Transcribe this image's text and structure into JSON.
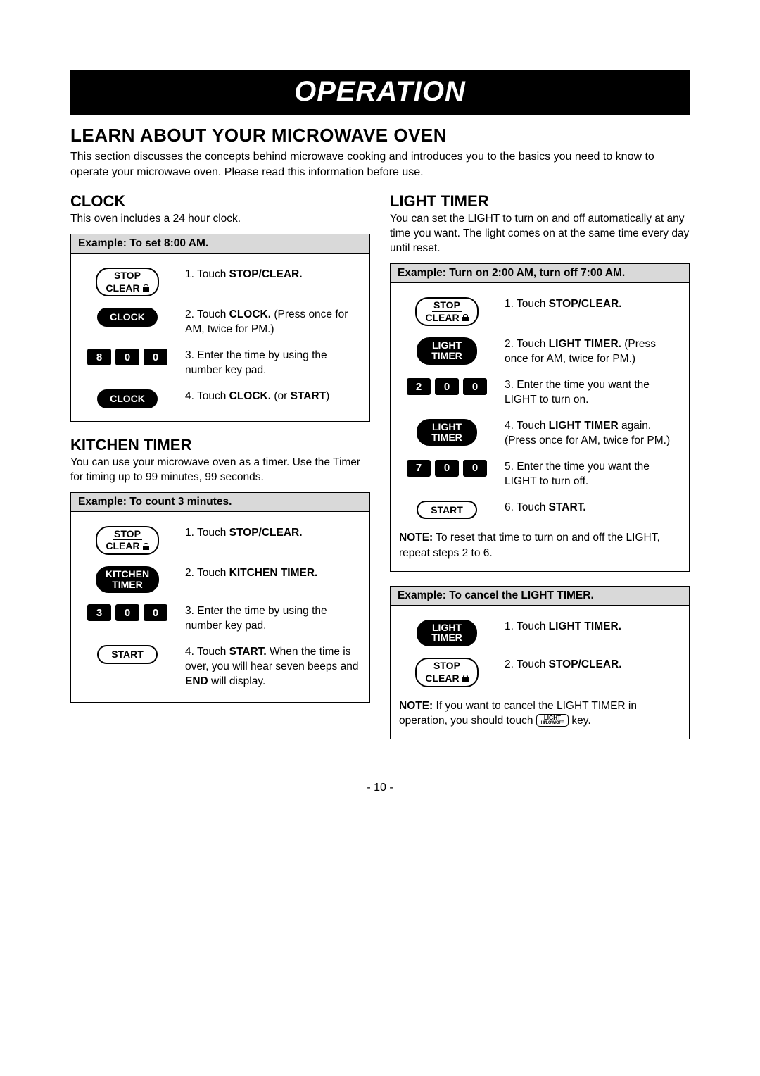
{
  "banner": "OPERATION",
  "h1": "LEARN ABOUT YOUR MICROWAVE OVEN",
  "intro": "This section discusses the concepts behind microwave cooking and introduces you to the basics you need to know to operate your microwave oven. Please read this information before use.",
  "page_num": "- 10 -",
  "clock": {
    "title": "CLOCK",
    "desc": "This oven includes a 24 hour clock.",
    "example_title": "Example: To set 8:00 AM.",
    "steps": {
      "s1_prefix": "1. Touch ",
      "s1_bold": "STOP/CLEAR.",
      "s2_prefix": "2. Touch ",
      "s2_bold": "CLOCK.",
      "s2_suffix": " (Press once for AM, twice for PM.)",
      "s3": "3. Enter the time by using the number key pad.",
      "s4_prefix": "4. Touch ",
      "s4_bold": "CLOCK.",
      "s4_suffix_a": " (or ",
      "s4_suffix_bold": "START",
      "s4_suffix_b": ")"
    },
    "keys": {
      "k1": "8",
      "k2": "0",
      "k3": "0"
    },
    "btn_stop_top": "STOP",
    "btn_stop_bot": "CLEAR",
    "btn_clock": "CLOCK"
  },
  "kitchen": {
    "title": "KITCHEN TIMER",
    "desc": "You can use your microwave oven as a timer. Use the Timer for timing up to 99 minutes, 99 seconds.",
    "example_title": "Example: To count 3 minutes.",
    "steps": {
      "s1_prefix": "1. Touch ",
      "s1_bold": "STOP/CLEAR.",
      "s2_prefix": "2. Touch ",
      "s2_bold": "KITCHEN TIMER.",
      "s3": "3. Enter the time by using the number key pad.",
      "s4_prefix": "4. Touch ",
      "s4_bold": "START.",
      "s4_suffix_a": " When the time is over, you will hear seven beeps and ",
      "s4_suffix_bold": "END",
      "s4_suffix_b": " will display."
    },
    "keys": {
      "k1": "3",
      "k2": "0",
      "k3": "0"
    },
    "btn_kitchen_top": "KITCHEN",
    "btn_kitchen_bot": "TIMER",
    "btn_start": "START"
  },
  "light": {
    "title": "LIGHT TIMER",
    "desc": "You can set the LIGHT to turn on and off automatically at any time you want. The light comes on at the same time every day until reset.",
    "example_title": "Example: Turn on 2:00 AM, turn off 7:00 AM.",
    "steps": {
      "s1_prefix": "1. Touch ",
      "s1_bold": "STOP/CLEAR.",
      "s2_prefix": "2. Touch ",
      "s2_bold": "LIGHT TIMER.",
      "s2_suffix": " (Press once for AM, twice for PM.)",
      "s3": "3. Enter the time you want the LIGHT to turn on.",
      "s4_prefix": "4. Touch ",
      "s4_bold": "LIGHT TIMER",
      "s4_suffix": " again. (Press once for AM, twice for PM.)",
      "s5": "5. Enter the time you want the LIGHT to turn off.",
      "s6_prefix": "6. Touch ",
      "s6_bold": "START."
    },
    "keys_on": {
      "k1": "2",
      "k2": "0",
      "k3": "0"
    },
    "keys_off": {
      "k1": "7",
      "k2": "0",
      "k3": "0"
    },
    "btn_light_top": "LIGHT",
    "btn_light_bot": "TIMER",
    "note1_a": "NOTE:",
    "note1_b": " To reset that time to turn on and off the LIGHT, repeat steps 2 to 6.",
    "cancel_title": "Example: To cancel the LIGHT TIMER.",
    "cancel_s1_prefix": "1. Touch ",
    "cancel_s1_bold": "LIGHT TIMER.",
    "cancel_s2_prefix": "2. Touch ",
    "cancel_s2_bold": "STOP/CLEAR.",
    "note2_a": "NOTE:",
    "note2_b": " If you want to cancel the LIGHT TIMER in operation, you should touch ",
    "note2_c": " key.",
    "inlinekey_top": "LIGHT",
    "inlinekey_bot": "HI/LOW/OFF"
  }
}
